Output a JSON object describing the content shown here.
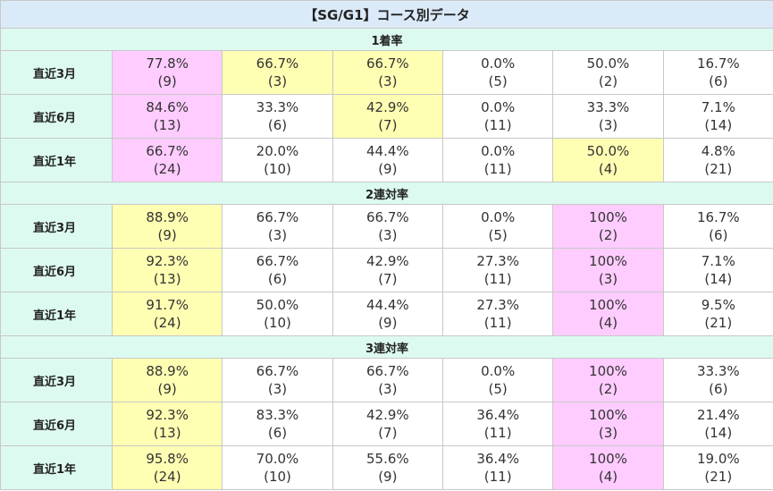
{
  "title": "【SG/G1】コース別データ",
  "colors": {
    "header_bg": "#dbeaf8",
    "section_bg": "#ddfaf0",
    "pink": "#ffccff",
    "yellow": "#ffffb3"
  },
  "sections": [
    {
      "name": "1着率",
      "rows": [
        {
          "label": "直近3月",
          "cells": [
            {
              "pct": "77.8%",
              "count": "(9)",
              "hl": "pink"
            },
            {
              "pct": "66.7%",
              "count": "(3)",
              "hl": "yellow"
            },
            {
              "pct": "66.7%",
              "count": "(3)",
              "hl": "yellow"
            },
            {
              "pct": "0.0%",
              "count": "(5)",
              "hl": ""
            },
            {
              "pct": "50.0%",
              "count": "(2)",
              "hl": ""
            },
            {
              "pct": "16.7%",
              "count": "(6)",
              "hl": ""
            }
          ]
        },
        {
          "label": "直近6月",
          "cells": [
            {
              "pct": "84.6%",
              "count": "(13)",
              "hl": "pink"
            },
            {
              "pct": "33.3%",
              "count": "(6)",
              "hl": ""
            },
            {
              "pct": "42.9%",
              "count": "(7)",
              "hl": "yellow"
            },
            {
              "pct": "0.0%",
              "count": "(11)",
              "hl": ""
            },
            {
              "pct": "33.3%",
              "count": "(3)",
              "hl": ""
            },
            {
              "pct": "7.1%",
              "count": "(14)",
              "hl": ""
            }
          ]
        },
        {
          "label": "直近1年",
          "cells": [
            {
              "pct": "66.7%",
              "count": "(24)",
              "hl": "pink"
            },
            {
              "pct": "20.0%",
              "count": "(10)",
              "hl": ""
            },
            {
              "pct": "44.4%",
              "count": "(9)",
              "hl": ""
            },
            {
              "pct": "0.0%",
              "count": "(11)",
              "hl": ""
            },
            {
              "pct": "50.0%",
              "count": "(4)",
              "hl": "yellow"
            },
            {
              "pct": "4.8%",
              "count": "(21)",
              "hl": ""
            }
          ]
        }
      ]
    },
    {
      "name": "2連対率",
      "rows": [
        {
          "label": "直近3月",
          "cells": [
            {
              "pct": "88.9%",
              "count": "(9)",
              "hl": "yellow"
            },
            {
              "pct": "66.7%",
              "count": "(3)",
              "hl": ""
            },
            {
              "pct": "66.7%",
              "count": "(3)",
              "hl": ""
            },
            {
              "pct": "0.0%",
              "count": "(5)",
              "hl": ""
            },
            {
              "pct": "100%",
              "count": "(2)",
              "hl": "pink"
            },
            {
              "pct": "16.7%",
              "count": "(6)",
              "hl": ""
            }
          ]
        },
        {
          "label": "直近6月",
          "cells": [
            {
              "pct": "92.3%",
              "count": "(13)",
              "hl": "yellow"
            },
            {
              "pct": "66.7%",
              "count": "(6)",
              "hl": ""
            },
            {
              "pct": "42.9%",
              "count": "(7)",
              "hl": ""
            },
            {
              "pct": "27.3%",
              "count": "(11)",
              "hl": ""
            },
            {
              "pct": "100%",
              "count": "(3)",
              "hl": "pink"
            },
            {
              "pct": "7.1%",
              "count": "(14)",
              "hl": ""
            }
          ]
        },
        {
          "label": "直近1年",
          "cells": [
            {
              "pct": "91.7%",
              "count": "(24)",
              "hl": "yellow"
            },
            {
              "pct": "50.0%",
              "count": "(10)",
              "hl": ""
            },
            {
              "pct": "44.4%",
              "count": "(9)",
              "hl": ""
            },
            {
              "pct": "27.3%",
              "count": "(11)",
              "hl": ""
            },
            {
              "pct": "100%",
              "count": "(4)",
              "hl": "pink"
            },
            {
              "pct": "9.5%",
              "count": "(21)",
              "hl": ""
            }
          ]
        }
      ]
    },
    {
      "name": "3連対率",
      "rows": [
        {
          "label": "直近3月",
          "cells": [
            {
              "pct": "88.9%",
              "count": "(9)",
              "hl": "yellow"
            },
            {
              "pct": "66.7%",
              "count": "(3)",
              "hl": ""
            },
            {
              "pct": "66.7%",
              "count": "(3)",
              "hl": ""
            },
            {
              "pct": "0.0%",
              "count": "(5)",
              "hl": ""
            },
            {
              "pct": "100%",
              "count": "(2)",
              "hl": "pink"
            },
            {
              "pct": "33.3%",
              "count": "(6)",
              "hl": ""
            }
          ]
        },
        {
          "label": "直近6月",
          "cells": [
            {
              "pct": "92.3%",
              "count": "(13)",
              "hl": "yellow"
            },
            {
              "pct": "83.3%",
              "count": "(6)",
              "hl": ""
            },
            {
              "pct": "42.9%",
              "count": "(7)",
              "hl": ""
            },
            {
              "pct": "36.4%",
              "count": "(11)",
              "hl": ""
            },
            {
              "pct": "100%",
              "count": "(3)",
              "hl": "pink"
            },
            {
              "pct": "21.4%",
              "count": "(14)",
              "hl": ""
            }
          ]
        },
        {
          "label": "直近1年",
          "cells": [
            {
              "pct": "95.8%",
              "count": "(24)",
              "hl": "yellow"
            },
            {
              "pct": "70.0%",
              "count": "(10)",
              "hl": ""
            },
            {
              "pct": "55.6%",
              "count": "(9)",
              "hl": ""
            },
            {
              "pct": "36.4%",
              "count": "(11)",
              "hl": ""
            },
            {
              "pct": "100%",
              "count": "(4)",
              "hl": "pink"
            },
            {
              "pct": "19.0%",
              "count": "(21)",
              "hl": ""
            }
          ]
        }
      ]
    }
  ]
}
